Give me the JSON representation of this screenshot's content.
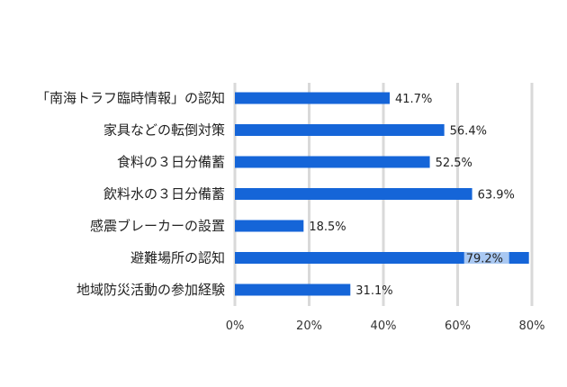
{
  "chart_data": {
    "type": "bar",
    "orientation": "horizontal",
    "categories": [
      "「南海トラフ臨時情報」の認知",
      "家具などの転倒対策",
      "食料の３日分備蓄",
      "飲料水の３日分備蓄",
      "感震ブレーカーの設置",
      "避難場所の認知",
      "地域防災活動の参加経験"
    ],
    "values": [
      41.7,
      56.4,
      52.5,
      63.9,
      18.5,
      79.2,
      31.1
    ],
    "data_labels": [
      "41.7%",
      "56.4%",
      "52.5%",
      "63.9%",
      "18.5%",
      "79.2%",
      "31.1%"
    ],
    "x_ticks": [
      "0%",
      "20%",
      "40%",
      "60%",
      "80%"
    ],
    "xlim": [
      0,
      80
    ],
    "grid": true,
    "bar_color": "#1565d8",
    "grid_color": "#d9d9d9",
    "title": "",
    "xlabel": "",
    "ylabel": ""
  }
}
